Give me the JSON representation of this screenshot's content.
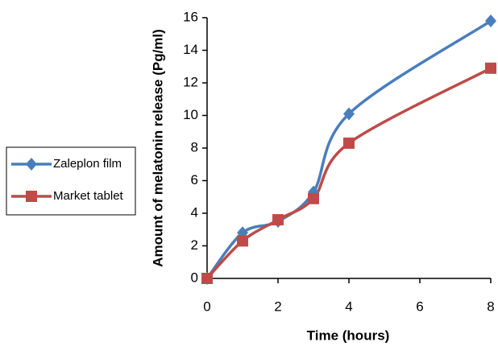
{
  "chart_data": {
    "type": "line",
    "x_label": "Time (hours)",
    "y_label": "Amount of melatonin release (Pg/ml)",
    "x": [
      0,
      1,
      2,
      3,
      4,
      8
    ],
    "series": [
      {
        "name": "Zaleplon film",
        "color": "#4a7ebb",
        "marker": "diamond",
        "values": [
          0,
          2.8,
          3.5,
          5.3,
          10.1,
          15.8
        ]
      },
      {
        "name": "Market tablet",
        "color": "#be4b48",
        "marker": "square",
        "values": [
          0,
          2.3,
          3.6,
          4.9,
          8.3,
          12.9
        ]
      }
    ],
    "xlim": [
      0,
      8
    ],
    "xticks": [
      0,
      2,
      4,
      6,
      8
    ],
    "ylim": [
      0,
      16
    ],
    "yticks": [
      0,
      2,
      4,
      6,
      8,
      10,
      12,
      14,
      16
    ],
    "grid": false,
    "smooth": true,
    "legend": "left"
  }
}
